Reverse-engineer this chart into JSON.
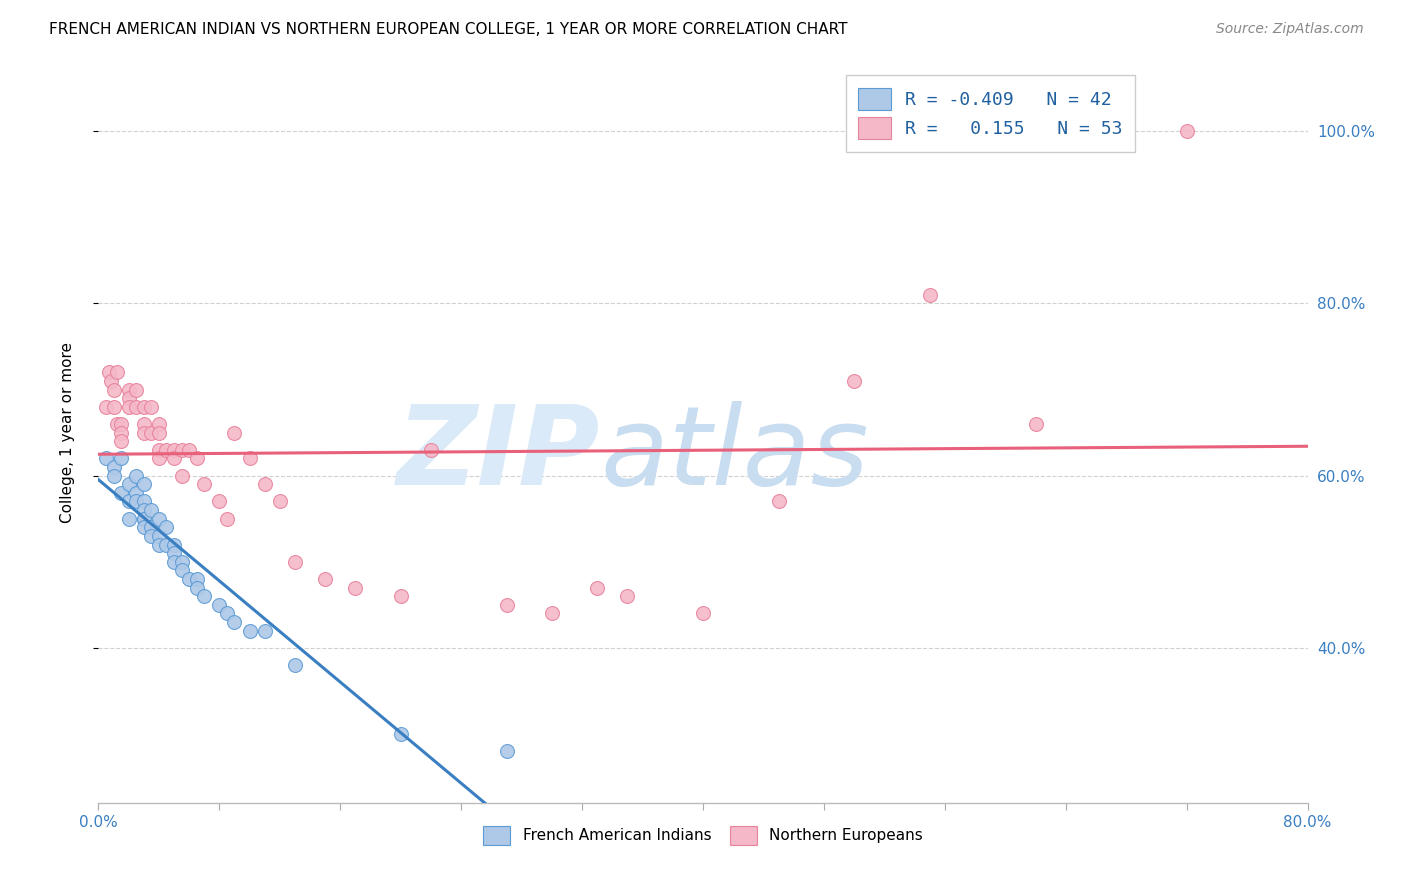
{
  "title": "FRENCH AMERICAN INDIAN VS NORTHERN EUROPEAN COLLEGE, 1 YEAR OR MORE CORRELATION CHART",
  "source": "Source: ZipAtlas.com",
  "ylabel": "College, 1 year or more",
  "watermark": "ZIPatlas",
  "legend_blue_R": "-0.409",
  "legend_blue_N": "42",
  "legend_pink_R": "0.155",
  "legend_pink_N": "53",
  "blue_scatter_x": [
    0.005,
    0.01,
    0.01,
    0.015,
    0.015,
    0.02,
    0.02,
    0.02,
    0.025,
    0.025,
    0.025,
    0.03,
    0.03,
    0.03,
    0.03,
    0.03,
    0.03,
    0.035,
    0.035,
    0.035,
    0.04,
    0.04,
    0.04,
    0.045,
    0.045,
    0.05,
    0.05,
    0.05,
    0.055,
    0.055,
    0.06,
    0.065,
    0.065,
    0.07,
    0.08,
    0.085,
    0.09,
    0.1,
    0.11,
    0.13,
    0.2,
    0.27
  ],
  "blue_scatter_y": [
    0.62,
    0.61,
    0.6,
    0.62,
    0.58,
    0.59,
    0.57,
    0.55,
    0.6,
    0.58,
    0.57,
    0.59,
    0.57,
    0.56,
    0.55,
    0.55,
    0.54,
    0.56,
    0.54,
    0.53,
    0.55,
    0.53,
    0.52,
    0.54,
    0.52,
    0.52,
    0.51,
    0.5,
    0.5,
    0.49,
    0.48,
    0.48,
    0.47,
    0.46,
    0.45,
    0.44,
    0.43,
    0.42,
    0.42,
    0.38,
    0.3,
    0.28
  ],
  "pink_scatter_x": [
    0.005,
    0.007,
    0.008,
    0.01,
    0.01,
    0.012,
    0.012,
    0.015,
    0.015,
    0.015,
    0.02,
    0.02,
    0.02,
    0.025,
    0.025,
    0.03,
    0.03,
    0.03,
    0.035,
    0.035,
    0.04,
    0.04,
    0.04,
    0.04,
    0.045,
    0.05,
    0.05,
    0.055,
    0.055,
    0.06,
    0.065,
    0.07,
    0.08,
    0.085,
    0.09,
    0.1,
    0.11,
    0.12,
    0.13,
    0.15,
    0.17,
    0.2,
    0.22,
    0.27,
    0.3,
    0.33,
    0.35,
    0.4,
    0.45,
    0.5,
    0.55,
    0.62,
    0.72
  ],
  "pink_scatter_y": [
    0.68,
    0.72,
    0.71,
    0.7,
    0.68,
    0.72,
    0.66,
    0.66,
    0.65,
    0.64,
    0.7,
    0.69,
    0.68,
    0.7,
    0.68,
    0.68,
    0.66,
    0.65,
    0.68,
    0.65,
    0.66,
    0.65,
    0.63,
    0.62,
    0.63,
    0.63,
    0.62,
    0.63,
    0.6,
    0.63,
    0.62,
    0.59,
    0.57,
    0.55,
    0.65,
    0.62,
    0.59,
    0.57,
    0.5,
    0.48,
    0.47,
    0.46,
    0.63,
    0.45,
    0.44,
    0.47,
    0.46,
    0.44,
    0.57,
    0.71,
    0.81,
    0.66,
    1.0
  ],
  "blue_color": "#aec8e8",
  "pink_color": "#f4b8c8",
  "blue_edge_color": "#5b9bd5",
  "pink_edge_color": "#e8829a",
  "blue_line_color": "#3a7fc1",
  "pink_line_color": "#e8607a",
  "bg_color": "#ffffff",
  "grid_color": "#cccccc",
  "watermark_color": "#daeaf8",
  "xlim": [
    0.0,
    0.8
  ],
  "ylim": [
    0.22,
    1.08
  ],
  "yticks": [
    0.4,
    0.6,
    0.8,
    1.0
  ],
  "xtick_count": 10
}
